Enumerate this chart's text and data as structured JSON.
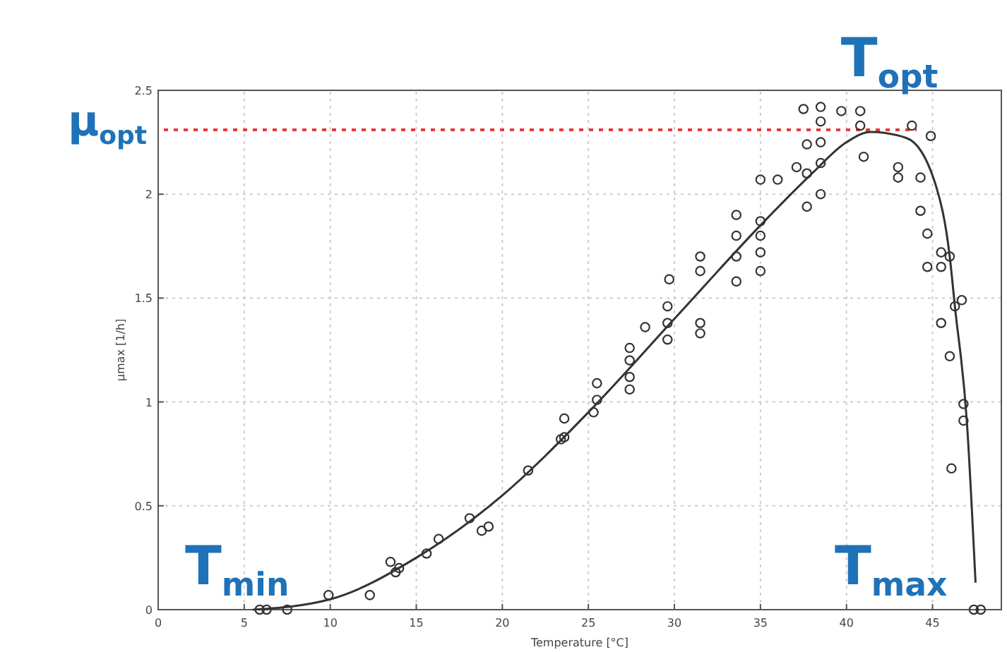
{
  "chart_data": {
    "type": "scatter",
    "xlabel": "Temperature [°C]",
    "ylabel": "μmax [1/h]",
    "xlim": [
      0,
      49
    ],
    "ylim": [
      0,
      2.5
    ],
    "xticks": [
      0,
      5,
      10,
      15,
      20,
      25,
      30,
      35,
      40,
      45
    ],
    "yticks": [
      0,
      0.5,
      1,
      1.5,
      2,
      2.5
    ],
    "grid": true,
    "series": [
      {
        "marker": "circle",
        "color": "#333333",
        "x": [
          5.9,
          6.3,
          7.5,
          9.9,
          12.3,
          13.5,
          14,
          13.8,
          15.6,
          16.3,
          18.1,
          19.2,
          18.8,
          21.5,
          23.4,
          23.6,
          23.6,
          25.5,
          25.5,
          25.3,
          27.4,
          27.4,
          27.4,
          27.4,
          28.3,
          29.6,
          29.6,
          29.6,
          29.7,
          31.5,
          31.5,
          31.5,
          31.5,
          33.6,
          33.6,
          33.6,
          33.6,
          35,
          35,
          35,
          35,
          35,
          36,
          37.1,
          37.7,
          37.7,
          37.7,
          37.5,
          38.5,
          38.5,
          38.5,
          38.5,
          38.5,
          39.7,
          40.8,
          40.8,
          41,
          43,
          43,
          43.8,
          44.3,
          44.3,
          44.7,
          44.7,
          44.9,
          45.5,
          45.5,
          46,
          46.3,
          45.5,
          46.7,
          46,
          46.8,
          46.8,
          46.1,
          47.4,
          47.8
        ],
        "values": [
          0,
          0,
          0,
          0.07,
          0.07,
          0.23,
          0.2,
          0.18,
          0.27,
          0.34,
          0.44,
          0.4,
          0.38,
          0.67,
          0.82,
          0.92,
          0.83,
          1.01,
          1.09,
          0.95,
          1.06,
          1.12,
          1.2,
          1.26,
          1.36,
          1.3,
          1.38,
          1.46,
          1.59,
          1.63,
          1.7,
          1.33,
          1.38,
          1.58,
          1.7,
          1.8,
          1.9,
          1.63,
          1.72,
          1.8,
          1.87,
          2.07,
          2.07,
          2.13,
          1.94,
          2.1,
          2.24,
          2.41,
          2.0,
          2.15,
          2.25,
          2.35,
          2.42,
          2.4,
          2.4,
          2.33,
          2.18,
          2.08,
          2.13,
          2.33,
          1.92,
          2.08,
          1.65,
          1.81,
          2.28,
          1.65,
          1.72,
          1.7,
          1.46,
          1.38,
          1.49,
          1.22,
          0.99,
          0.91,
          0.68,
          0,
          0
        ]
      },
      {
        "type": "line",
        "marker": "none",
        "color": "#333333",
        "x": [
          5.5,
          10,
          15,
          20,
          25,
          30,
          35,
          38,
          40,
          41.4,
          43.5,
          45.2,
          46,
          46.3,
          47,
          47.5
        ],
        "values": [
          0,
          0.05,
          0.25,
          0.55,
          0.95,
          1.4,
          1.85,
          2.1,
          2.25,
          2.3,
          2.27,
          2.04,
          1.7,
          1.46,
          0.9,
          0.13
        ]
      }
    ],
    "ref_lines": [
      {
        "axis": "y",
        "value": 2.31,
        "label": "μ$_{opt}$",
        "color": "#e8393a",
        "line_style": "dotted"
      }
    ],
    "annotations": [
      {
        "text": "T$_{opt}$",
        "x": 42.5,
        "y": 2.31
      },
      {
        "text": "T$_{min}$",
        "x": 5.5,
        "y": 0
      },
      {
        "text": "T$_{max}$",
        "x": 47.5,
        "y": 0
      }
    ]
  }
}
